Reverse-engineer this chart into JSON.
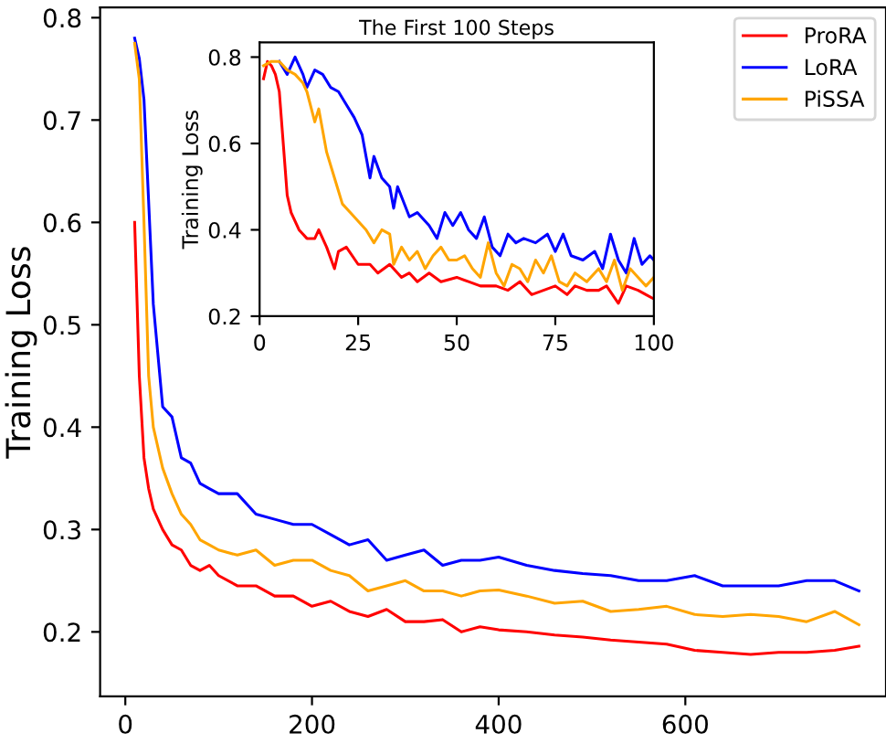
{
  "chart_data": [
    {
      "type": "line",
      "ylabel": "Training Loss",
      "xlim": [
        -27,
        815
      ],
      "ylim": [
        0.137,
        0.81
      ],
      "xticks": [
        0,
        200,
        400,
        600
      ],
      "yticks": [
        0.2,
        0.3,
        0.4,
        0.5,
        0.6,
        0.7,
        0.8
      ],
      "grid": false,
      "legend": "top right",
      "line_style": "solid",
      "marker": "none",
      "series": [
        {
          "name": "ProRA",
          "color": "#ff0000",
          "x": [
            10,
            15,
            20,
            25,
            30,
            40,
            50,
            60,
            70,
            80,
            90,
            100,
            120,
            140,
            160,
            180,
            200,
            220,
            240,
            260,
            280,
            300,
            320,
            340,
            360,
            380,
            400,
            430,
            460,
            490,
            520,
            550,
            580,
            610,
            640,
            670,
            700,
            730,
            760,
            786
          ],
          "values": [
            0.6,
            0.45,
            0.37,
            0.34,
            0.32,
            0.3,
            0.285,
            0.28,
            0.265,
            0.26,
            0.265,
            0.255,
            0.245,
            0.245,
            0.235,
            0.235,
            0.225,
            0.23,
            0.22,
            0.215,
            0.222,
            0.21,
            0.21,
            0.212,
            0.2,
            0.205,
            0.202,
            0.2,
            0.197,
            0.195,
            0.192,
            0.19,
            0.188,
            0.182,
            0.18,
            0.178,
            0.18,
            0.18,
            0.182,
            0.186
          ]
        },
        {
          "name": "LoRA",
          "color": "#0000ff",
          "x": [
            10,
            15,
            20,
            25,
            30,
            40,
            50,
            60,
            70,
            80,
            90,
            100,
            120,
            140,
            160,
            180,
            200,
            220,
            240,
            260,
            280,
            300,
            320,
            340,
            360,
            380,
            400,
            430,
            460,
            490,
            520,
            550,
            580,
            610,
            640,
            670,
            700,
            730,
            760,
            786
          ],
          "values": [
            0.78,
            0.76,
            0.72,
            0.62,
            0.52,
            0.42,
            0.41,
            0.37,
            0.365,
            0.345,
            0.34,
            0.335,
            0.335,
            0.315,
            0.31,
            0.305,
            0.305,
            0.295,
            0.285,
            0.29,
            0.27,
            0.275,
            0.28,
            0.265,
            0.27,
            0.27,
            0.273,
            0.265,
            0.26,
            0.257,
            0.255,
            0.25,
            0.25,
            0.255,
            0.245,
            0.245,
            0.245,
            0.25,
            0.25,
            0.24
          ]
        },
        {
          "name": "PiSSA",
          "color": "#ffa500",
          "x": [
            10,
            15,
            20,
            25,
            30,
            40,
            50,
            60,
            70,
            80,
            90,
            100,
            120,
            140,
            160,
            180,
            200,
            220,
            240,
            260,
            280,
            300,
            320,
            340,
            360,
            380,
            400,
            430,
            460,
            490,
            520,
            550,
            580,
            610,
            640,
            670,
            700,
            730,
            760,
            786
          ],
          "values": [
            0.775,
            0.74,
            0.6,
            0.45,
            0.4,
            0.36,
            0.335,
            0.315,
            0.305,
            0.29,
            0.285,
            0.28,
            0.275,
            0.28,
            0.265,
            0.27,
            0.27,
            0.26,
            0.255,
            0.24,
            0.245,
            0.25,
            0.24,
            0.24,
            0.235,
            0.24,
            0.241,
            0.235,
            0.228,
            0.23,
            0.22,
            0.222,
            0.225,
            0.217,
            0.215,
            0.217,
            0.215,
            0.21,
            0.22,
            0.207
          ]
        }
      ]
    },
    {
      "type": "line",
      "title": "The First 100 Steps",
      "ylabel": "Training Loss",
      "xlim": [
        0,
        100
      ],
      "ylim": [
        0.2,
        0.834
      ],
      "xticks": [
        0,
        25,
        50,
        75,
        100
      ],
      "yticks": [
        0.2,
        0.4,
        0.6,
        0.8
      ],
      "grid": false,
      "line_style": "solid",
      "marker": "none",
      "series": [
        {
          "color": "#ff0000",
          "x": [
            1,
            2,
            3,
            4,
            5,
            6,
            7,
            8,
            10,
            12,
            14,
            15,
            17,
            19,
            20,
            22,
            25,
            28,
            30,
            33,
            36,
            38,
            40,
            43,
            46,
            50,
            53,
            56,
            60,
            63,
            66,
            69,
            72,
            75,
            78,
            80,
            83,
            86,
            88,
            91,
            93,
            96,
            98,
            100
          ],
          "values": [
            0.75,
            0.79,
            0.78,
            0.76,
            0.72,
            0.6,
            0.48,
            0.44,
            0.4,
            0.38,
            0.38,
            0.4,
            0.36,
            0.31,
            0.35,
            0.36,
            0.32,
            0.32,
            0.3,
            0.32,
            0.29,
            0.3,
            0.28,
            0.3,
            0.28,
            0.29,
            0.28,
            0.27,
            0.27,
            0.26,
            0.28,
            0.25,
            0.26,
            0.27,
            0.25,
            0.27,
            0.26,
            0.26,
            0.27,
            0.23,
            0.27,
            0.26,
            0.25,
            0.24
          ]
        },
        {
          "color": "#0000ff",
          "x": [
            5,
            7,
            9,
            11,
            12,
            14,
            16,
            18,
            20,
            22,
            24,
            26,
            28,
            29,
            31,
            33,
            34,
            35,
            38,
            40,
            43,
            45,
            47,
            49,
            51,
            53,
            55,
            57,
            59,
            61,
            63,
            65,
            67,
            70,
            73,
            75,
            77,
            79,
            82,
            85,
            87,
            89,
            91,
            93,
            95,
            97,
            99,
            100
          ],
          "values": [
            0.79,
            0.76,
            0.8,
            0.76,
            0.73,
            0.77,
            0.76,
            0.73,
            0.72,
            0.69,
            0.66,
            0.62,
            0.52,
            0.57,
            0.52,
            0.5,
            0.45,
            0.5,
            0.43,
            0.44,
            0.41,
            0.38,
            0.44,
            0.41,
            0.44,
            0.4,
            0.38,
            0.43,
            0.36,
            0.34,
            0.39,
            0.37,
            0.38,
            0.37,
            0.39,
            0.35,
            0.39,
            0.34,
            0.33,
            0.35,
            0.31,
            0.39,
            0.33,
            0.3,
            0.38,
            0.32,
            0.34,
            0.33
          ]
        },
        {
          "color": "#ffa500",
          "x": [
            1,
            3,
            5,
            7,
            9,
            11,
            12,
            14,
            15,
            17,
            19,
            21,
            23,
            25,
            27,
            29,
            31,
            33,
            34,
            36,
            38,
            40,
            42,
            44,
            46,
            48,
            50,
            52,
            54,
            56,
            58,
            60,
            62,
            64,
            66,
            68,
            70,
            72,
            74,
            76,
            78,
            80,
            83,
            86,
            88,
            90,
            92,
            94,
            96,
            98,
            100
          ],
          "values": [
            0.78,
            0.79,
            0.79,
            0.77,
            0.76,
            0.74,
            0.72,
            0.65,
            0.68,
            0.58,
            0.52,
            0.46,
            0.44,
            0.42,
            0.4,
            0.37,
            0.4,
            0.39,
            0.32,
            0.36,
            0.33,
            0.35,
            0.31,
            0.34,
            0.36,
            0.33,
            0.33,
            0.34,
            0.31,
            0.29,
            0.37,
            0.3,
            0.27,
            0.32,
            0.31,
            0.28,
            0.33,
            0.3,
            0.34,
            0.28,
            0.27,
            0.3,
            0.28,
            0.31,
            0.28,
            0.33,
            0.26,
            0.31,
            0.29,
            0.27,
            0.29
          ]
        }
      ]
    }
  ]
}
